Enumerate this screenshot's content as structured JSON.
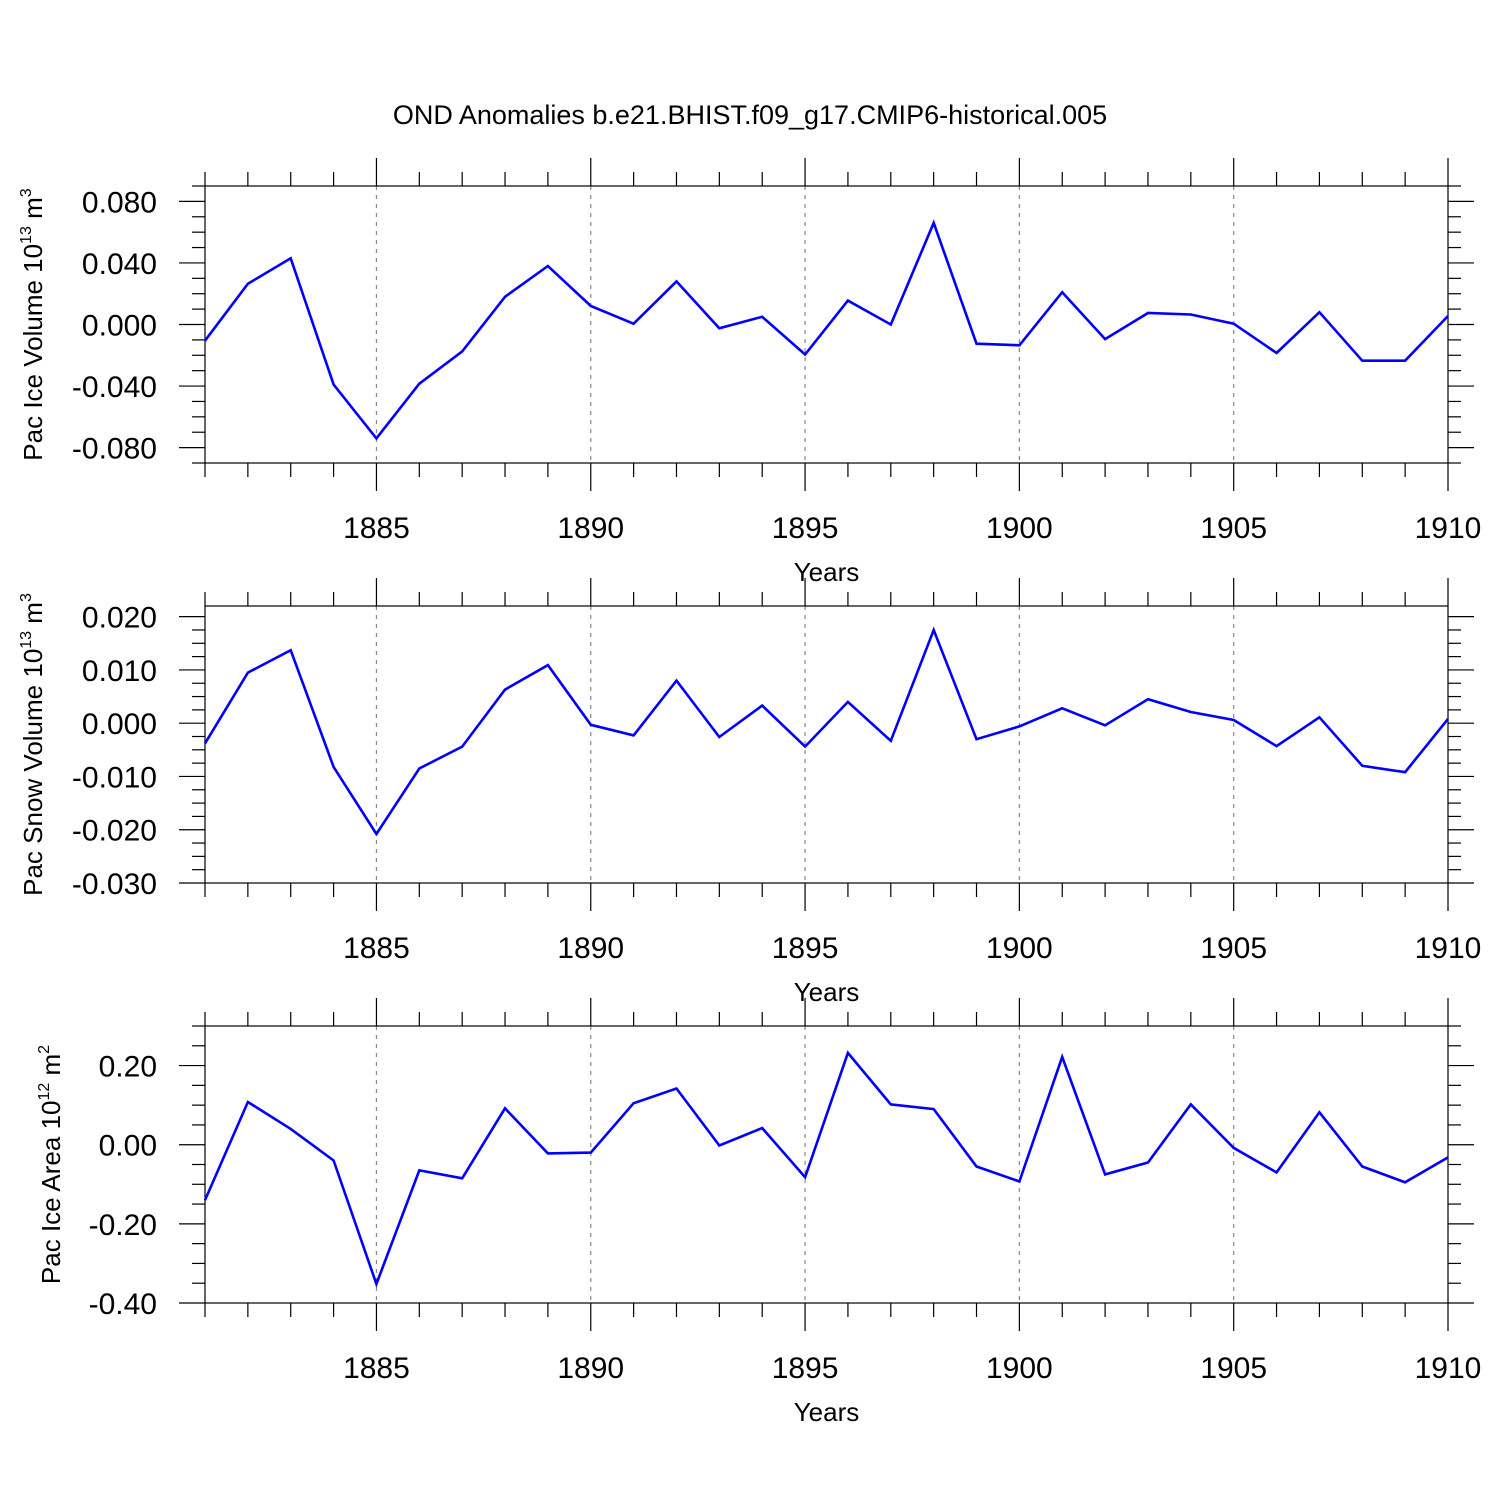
{
  "title": "OND Anomalies b.e21.BHIST.f09_g17.CMIP6-historical.005",
  "colors": {
    "series": "#0000ff",
    "grid": "#888888",
    "axis": "#000000"
  },
  "chart_data": [
    {
      "type": "line",
      "ylabel_text": "Pac Ice Volume 10",
      "ylabel_exp": "13",
      "ylabel_unit": " m",
      "ylabel_unit_exp": "3",
      "xlabel": "Years",
      "xlim": [
        1881,
        1910
      ],
      "ylim": [
        -0.09,
        0.09
      ],
      "xticks": [
        1885,
        1890,
        1895,
        1900,
        1905,
        1910
      ],
      "yticks": [
        -0.08,
        -0.04,
        0.0,
        0.04,
        0.08
      ],
      "ytick_labels": [
        "-0.080",
        "-0.040",
        "0.000",
        "0.040",
        "0.080"
      ],
      "grid": "x-dashed",
      "x": [
        1881,
        1882,
        1883,
        1884,
        1885,
        1886,
        1887,
        1888,
        1889,
        1890,
        1891,
        1892,
        1893,
        1894,
        1895,
        1896,
        1897,
        1898,
        1899,
        1900,
        1901,
        1902,
        1903,
        1904,
        1905,
        1906,
        1907,
        1908,
        1909,
        1910
      ],
      "values": [
        -0.0105,
        0.0265,
        0.043,
        -0.039,
        -0.074,
        -0.0385,
        -0.0175,
        0.018,
        0.038,
        0.012,
        0.0005,
        0.028,
        -0.0025,
        0.005,
        -0.0195,
        0.0155,
        0.0,
        0.066,
        -0.0125,
        -0.0135,
        0.021,
        -0.0095,
        0.0075,
        0.0065,
        0.0005,
        -0.0185,
        0.008,
        -0.0235,
        -0.0235,
        0.0055
      ]
    },
    {
      "type": "line",
      "ylabel_text": "Pac Snow Volume 10",
      "ylabel_exp": "13",
      "ylabel_unit": " m",
      "ylabel_unit_exp": "3",
      "xlabel": "Years",
      "xlim": [
        1881,
        1910
      ],
      "ylim": [
        -0.03,
        0.022
      ],
      "xticks": [
        1885,
        1890,
        1895,
        1900,
        1905,
        1910
      ],
      "yticks": [
        -0.03,
        -0.02,
        -0.01,
        0.0,
        0.01,
        0.02
      ],
      "ytick_labels": [
        "-0.030",
        "-0.020",
        "-0.010",
        "0.000",
        "0.010",
        "0.020"
      ],
      "grid": "x-dashed",
      "x": [
        1881,
        1882,
        1883,
        1884,
        1885,
        1886,
        1887,
        1888,
        1889,
        1890,
        1891,
        1892,
        1893,
        1894,
        1895,
        1896,
        1897,
        1898,
        1899,
        1900,
        1901,
        1902,
        1903,
        1904,
        1905,
        1906,
        1907,
        1908,
        1909,
        1910
      ],
      "values": [
        -0.0038,
        0.0095,
        0.0137,
        -0.0082,
        -0.0208,
        -0.0085,
        -0.0044,
        0.0063,
        0.0109,
        -0.0003,
        -0.0023,
        0.008,
        -0.0026,
        0.0033,
        -0.0044,
        0.004,
        -0.0033,
        0.0175,
        -0.003,
        -0.0006,
        0.0028,
        -0.0004,
        0.0045,
        0.0021,
        0.0006,
        -0.0043,
        0.0011,
        -0.008,
        -0.0092,
        0.0008
      ]
    },
    {
      "type": "line",
      "ylabel_text": "Pac Ice Area 10",
      "ylabel_exp": "12",
      "ylabel_unit": " m",
      "ylabel_unit_exp": "2",
      "xlabel": "Years",
      "xlim": [
        1881,
        1910
      ],
      "ylim": [
        -0.4,
        0.3
      ],
      "xticks": [
        1885,
        1890,
        1895,
        1900,
        1905,
        1910
      ],
      "yticks": [
        -0.4,
        -0.2,
        0.0,
        0.2
      ],
      "ytick_labels": [
        "-0.40",
        "-0.20",
        "0.00",
        "0.20"
      ],
      "grid": "x-dashed",
      "x": [
        1881,
        1882,
        1883,
        1884,
        1885,
        1886,
        1887,
        1888,
        1889,
        1890,
        1891,
        1892,
        1893,
        1894,
        1895,
        1896,
        1897,
        1898,
        1899,
        1900,
        1901,
        1902,
        1903,
        1904,
        1905,
        1906,
        1907,
        1908,
        1909,
        1910
      ],
      "values": [
        -0.14,
        0.108,
        0.04,
        -0.04,
        -0.352,
        -0.065,
        -0.085,
        0.092,
        -0.022,
        -0.02,
        0.105,
        0.142,
        -0.002,
        0.042,
        -0.082,
        0.232,
        0.102,
        0.09,
        -0.055,
        -0.093,
        0.222,
        -0.075,
        -0.045,
        0.102,
        -0.008,
        -0.07,
        0.082,
        -0.055,
        -0.095,
        -0.032
      ]
    }
  ]
}
